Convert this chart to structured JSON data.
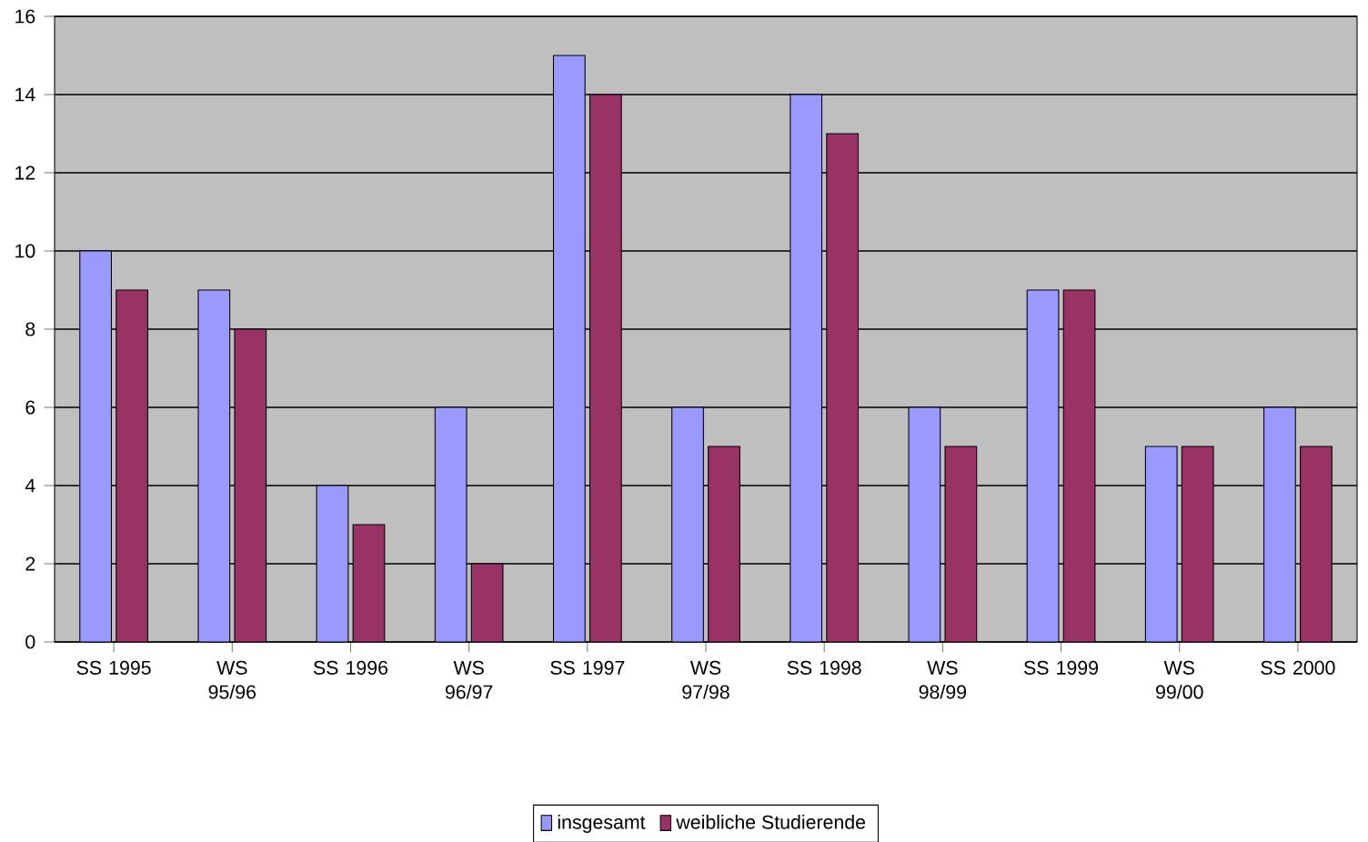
{
  "chart_data": {
    "type": "bar",
    "categories": [
      "SS 1995",
      "WS 95/96",
      "SS 1996",
      "WS 96/97",
      "SS 1997",
      "WS 97/98",
      "SS 1998",
      "WS 98/99",
      "SS 1999",
      "WS 99/00",
      "SS 2000"
    ],
    "series": [
      {
        "name": "insgesamt",
        "color": "#9999ff",
        "values": [
          10,
          9,
          4,
          6,
          15,
          6,
          14,
          6,
          9,
          5,
          6
        ]
      },
      {
        "name": "weibliche Studierende",
        "color": "#993366",
        "values": [
          9,
          8,
          3,
          2,
          14,
          5,
          13,
          5,
          9,
          5,
          5
        ]
      }
    ],
    "ylim": [
      0,
      16
    ],
    "yticks": [
      0,
      2,
      4,
      6,
      8,
      10,
      12,
      14,
      16
    ],
    "grid": "y",
    "legend": "bottom"
  }
}
